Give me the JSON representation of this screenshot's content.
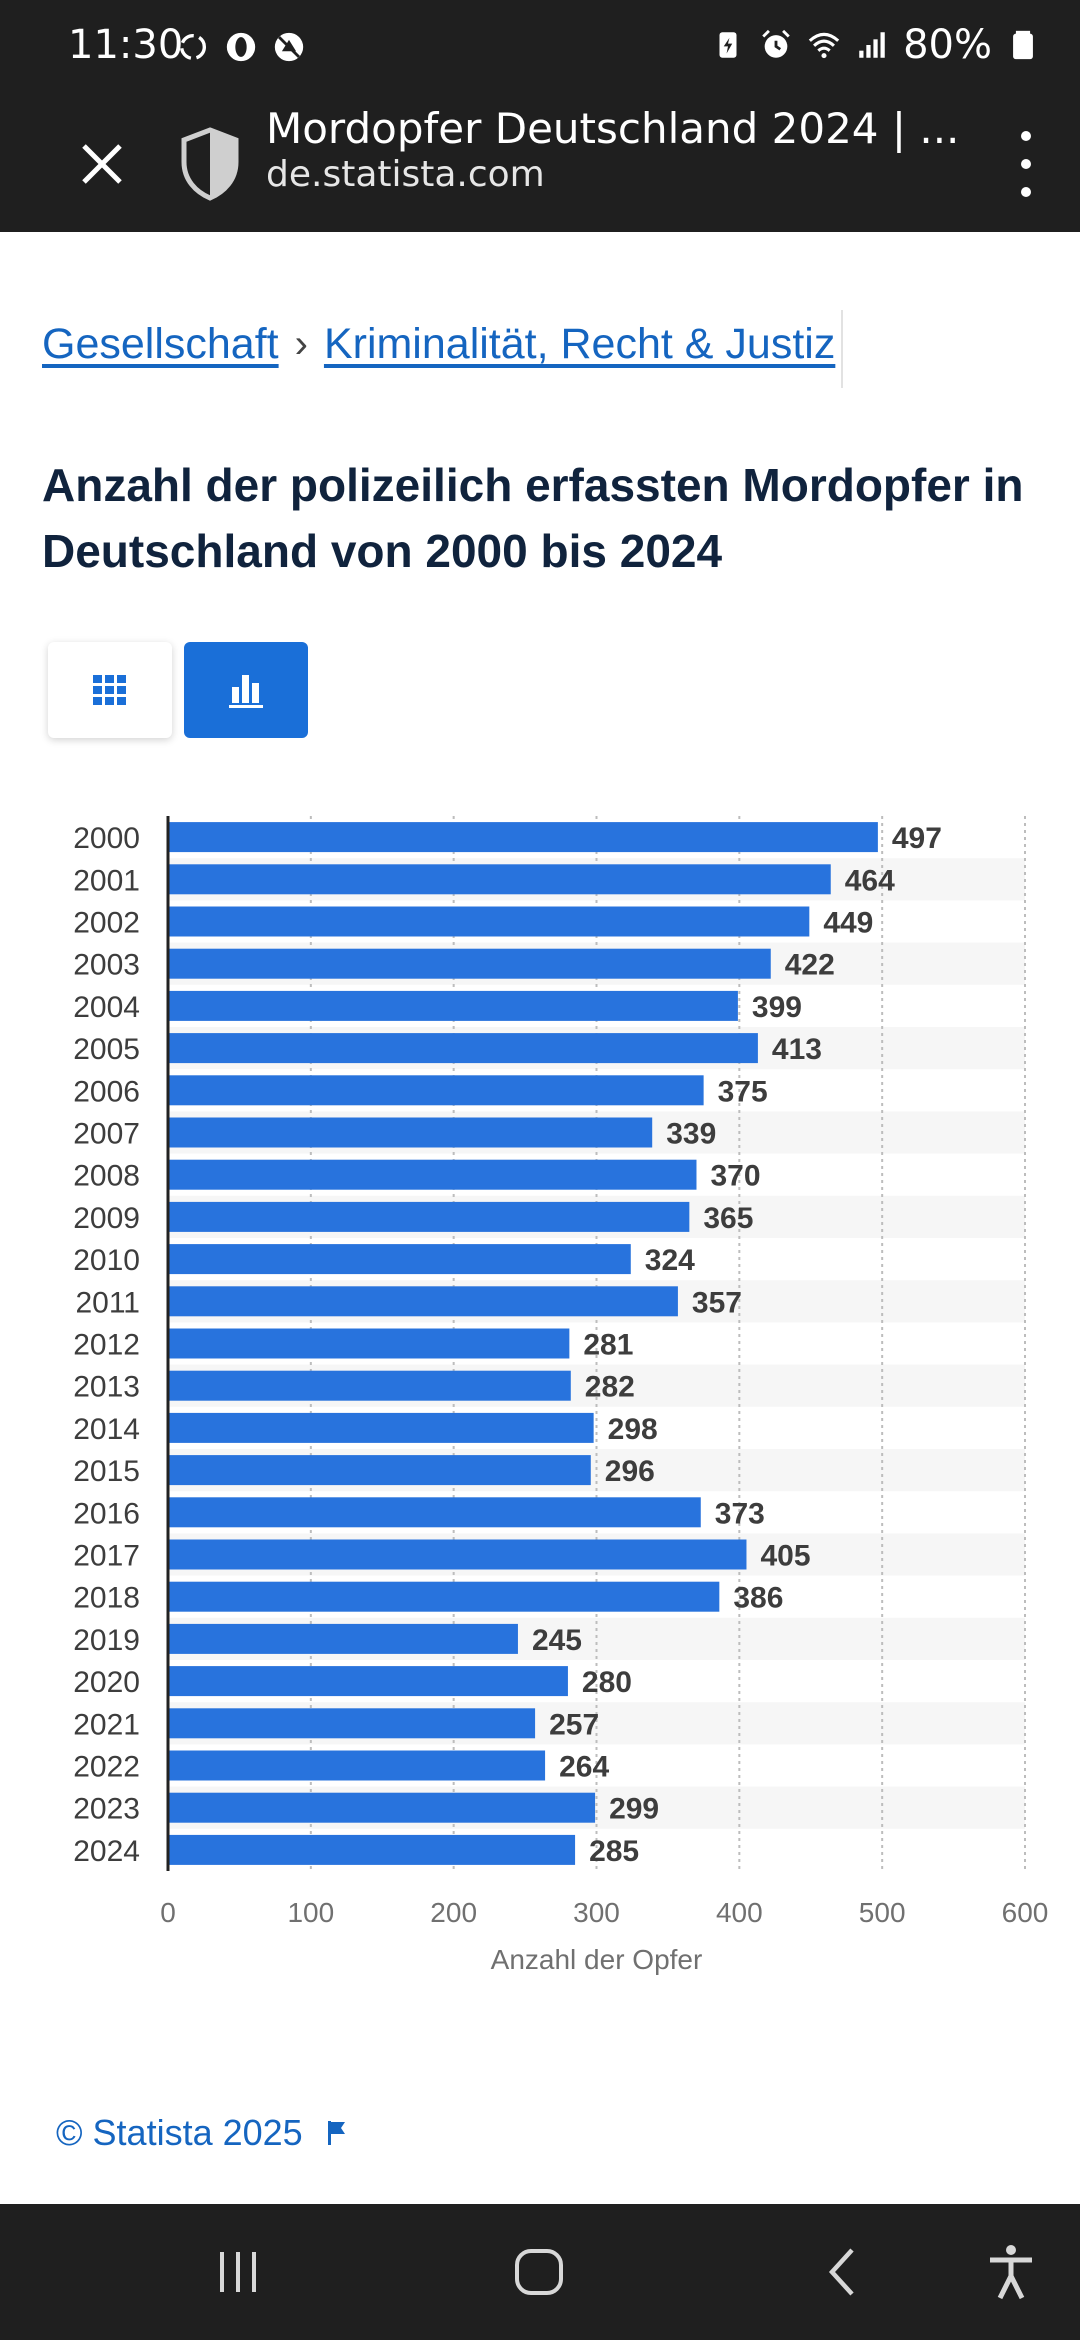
{
  "status_bar": {
    "time": "11:30",
    "battery": "80%",
    "left_icons": [
      "sync-icon",
      "opera-icon",
      "no-disturb-icon"
    ],
    "right_icons": [
      "battery-saver-icon",
      "alarm-icon",
      "wifi-icon",
      "signal-icon",
      "battery-icon"
    ]
  },
  "tab_header": {
    "title": "Mordopfer Deutschland 2024 | ...",
    "domain": "de.statista.com"
  },
  "breadcrumb": {
    "items": [
      "Gesellschaft",
      "Kriminalität, Recht & Justiz"
    ],
    "separator": "›"
  },
  "page": {
    "title": "Anzahl der polizeilich erfassten Mordopfer in Deutschland von 2000 bis 2024"
  },
  "colors": {
    "bar": "#2873dd",
    "accent": "#1a6fd8",
    "link": "#1565c0",
    "dark_bar": "#1f1f1f"
  },
  "chart_data": {
    "type": "bar",
    "orientation": "horizontal",
    "categories": [
      "2000",
      "2001",
      "2002",
      "2003",
      "2004",
      "2005",
      "2006",
      "2007",
      "2008",
      "2009",
      "2010",
      "2011",
      "2012",
      "2013",
      "2014",
      "2015",
      "2016",
      "2017",
      "2018",
      "2019",
      "2020",
      "2021",
      "2022",
      "2023",
      "2024"
    ],
    "values": [
      497,
      464,
      449,
      422,
      399,
      413,
      375,
      339,
      370,
      365,
      324,
      357,
      281,
      282,
      298,
      296,
      373,
      405,
      386,
      245,
      280,
      257,
      264,
      299,
      285
    ],
    "xlabel": "Anzahl der Opfer",
    "ylabel": "",
    "xlim": [
      0,
      600
    ],
    "xticks": [
      0,
      100,
      200,
      300,
      400,
      500,
      600
    ],
    "grid": true,
    "data_labels": true
  },
  "footer": {
    "copyright": "© Statista 2025"
  }
}
